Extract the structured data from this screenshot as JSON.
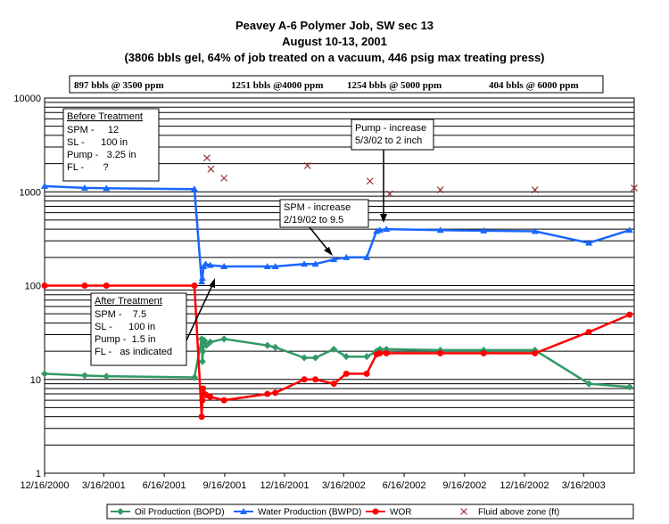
{
  "colors": {
    "oil": "#339966",
    "water": "#1a66ff",
    "wor": "#ff0000",
    "fluid": "#993333",
    "grid": "#000000"
  },
  "chart_data": {
    "type": "line",
    "title": [
      "Peavey A-6 Polymer Job, SW sec 13",
      "August 10-13, 2001",
      "(3806 bbls gel, 64% of job treated on a vacuum, 446 psig max treating press)"
    ],
    "y_scale": "log",
    "ylim": [
      1,
      10000
    ],
    "y_ticks": [
      1,
      10,
      100,
      1000,
      10000
    ],
    "xlim": [
      "2000-12-16",
      "2003-06-01"
    ],
    "x_ticks": [
      "12/16/2000",
      "3/16/2001",
      "6/16/2001",
      "9/16/2001",
      "12/16/2001",
      "3/16/2002",
      "6/16/2002",
      "9/16/2002",
      "12/16/2002",
      "3/16/2003"
    ],
    "x_tick_dates": [
      "2000-12-16",
      "2001-03-16",
      "2001-06-16",
      "2001-09-16",
      "2001-12-16",
      "2002-03-16",
      "2002-06-16",
      "2002-09-16",
      "2002-12-16",
      "2003-03-16"
    ],
    "grid": true,
    "legend_position": "bottom",
    "stage_labels": [
      "897 bbls @ 3500 ppm",
      "1251 bbls @4000 ppm",
      "1254 bbls @ 5000 ppm",
      "404 bbls @ 6000 ppm"
    ],
    "series": [
      {
        "name": "Oil Production (BOPD)",
        "color": "#339966",
        "marker": "diamond",
        "line": true,
        "points": [
          [
            "2000-12-16",
            11.5
          ],
          [
            "2001-02-15",
            11
          ],
          [
            "2001-03-20",
            10.8
          ],
          [
            "2001-08-01",
            10.5
          ],
          [
            "2001-08-12",
            27
          ],
          [
            "2001-08-13",
            15.5
          ],
          [
            "2001-08-14",
            20
          ],
          [
            "2001-08-16",
            26
          ],
          [
            "2001-08-19",
            23
          ],
          [
            "2001-08-25",
            25
          ],
          [
            "2001-09-15",
            27
          ],
          [
            "2001-11-20",
            23
          ],
          [
            "2001-12-02",
            22
          ],
          [
            "2002-01-15",
            17
          ],
          [
            "2002-02-01",
            17
          ],
          [
            "2002-03-01",
            21
          ],
          [
            "2002-03-20",
            17.5
          ],
          [
            "2002-04-20",
            17.5
          ],
          [
            "2002-05-05",
            20
          ],
          [
            "2002-05-10",
            21
          ],
          [
            "2002-05-20",
            21
          ],
          [
            "2002-08-10",
            20.5
          ],
          [
            "2002-10-15",
            20.5
          ],
          [
            "2003-01-01",
            20.5
          ],
          [
            "2003-03-24",
            9
          ],
          [
            "2003-05-25",
            8.3
          ]
        ]
      },
      {
        "name": "Water Production (BWPD)",
        "color": "#1a66ff",
        "marker": "triangle",
        "line": true,
        "points": [
          [
            "2000-12-16",
            1150
          ],
          [
            "2001-02-15",
            1100
          ],
          [
            "2001-03-20",
            1090
          ],
          [
            "2001-08-01",
            1070
          ],
          [
            "2001-08-12",
            110
          ],
          [
            "2001-08-13",
            120
          ],
          [
            "2001-08-15",
            160
          ],
          [
            "2001-08-18",
            170
          ],
          [
            "2001-08-25",
            165
          ],
          [
            "2001-09-15",
            160
          ],
          [
            "2001-11-20",
            160
          ],
          [
            "2001-12-02",
            160
          ],
          [
            "2002-01-15",
            170
          ],
          [
            "2002-02-01",
            170
          ],
          [
            "2002-03-01",
            190
          ],
          [
            "2002-03-20",
            200
          ],
          [
            "2002-04-20",
            200
          ],
          [
            "2002-05-05",
            380
          ],
          [
            "2002-05-10",
            390
          ],
          [
            "2002-05-20",
            400
          ],
          [
            "2002-08-10",
            390
          ],
          [
            "2002-10-15",
            385
          ],
          [
            "2003-01-01",
            380
          ],
          [
            "2003-03-24",
            285
          ],
          [
            "2003-05-25",
            390
          ]
        ]
      },
      {
        "name": "WOR",
        "color": "#ff0000",
        "marker": "circle",
        "line": true,
        "points": [
          [
            "2000-12-16",
            100
          ],
          [
            "2001-02-15",
            100
          ],
          [
            "2001-03-20",
            100
          ],
          [
            "2001-08-01",
            100
          ],
          [
            "2001-08-12",
            4
          ],
          [
            "2001-08-13",
            6
          ],
          [
            "2001-08-14",
            8
          ],
          [
            "2001-08-16",
            7
          ],
          [
            "2001-08-19",
            6.8
          ],
          [
            "2001-08-25",
            6.5
          ],
          [
            "2001-09-15",
            6
          ],
          [
            "2001-11-20",
            7
          ],
          [
            "2001-12-02",
            7.2
          ],
          [
            "2002-01-15",
            10
          ],
          [
            "2002-02-01",
            10
          ],
          [
            "2002-03-01",
            9
          ],
          [
            "2002-03-20",
            11.5
          ],
          [
            "2002-04-20",
            11.5
          ],
          [
            "2002-05-05",
            18.5
          ],
          [
            "2002-05-10",
            19
          ],
          [
            "2002-05-20",
            19
          ],
          [
            "2002-08-10",
            19
          ],
          [
            "2002-10-15",
            19
          ],
          [
            "2003-01-01",
            19
          ],
          [
            "2003-03-24",
            32
          ],
          [
            "2003-05-25",
            49
          ]
        ]
      },
      {
        "name": "Fluid above zone (ft)",
        "color": "#993333",
        "marker": "x",
        "line": false,
        "points": [
          [
            "2001-08-20",
            2300
          ],
          [
            "2001-08-26",
            1750
          ],
          [
            "2001-09-15",
            1400
          ],
          [
            "2002-01-20",
            1900
          ],
          [
            "2002-04-25",
            1300
          ],
          [
            "2002-05-25",
            950
          ],
          [
            "2002-08-10",
            1050
          ],
          [
            "2003-01-01",
            1050
          ],
          [
            "2003-06-01",
            1100
          ]
        ]
      }
    ]
  },
  "annotations": {
    "before": {
      "heading": "Before Treatment",
      "rows": [
        "SPM -     12",
        "SL -      100 in",
        "Pump -   3.25 in",
        "FL -       ?"
      ]
    },
    "after": {
      "heading": "After Treatment",
      "rows": [
        "SPM -    7.5",
        "SL -      100 in",
        "Pump -  1.5 in",
        "FL -   as indicated"
      ]
    },
    "spm": {
      "rows": [
        "SPM - increase",
        "2/19/02 to 9.5"
      ]
    },
    "pump": {
      "rows": [
        "Pump - increase",
        "5/3/02 to 2 inch"
      ]
    }
  }
}
